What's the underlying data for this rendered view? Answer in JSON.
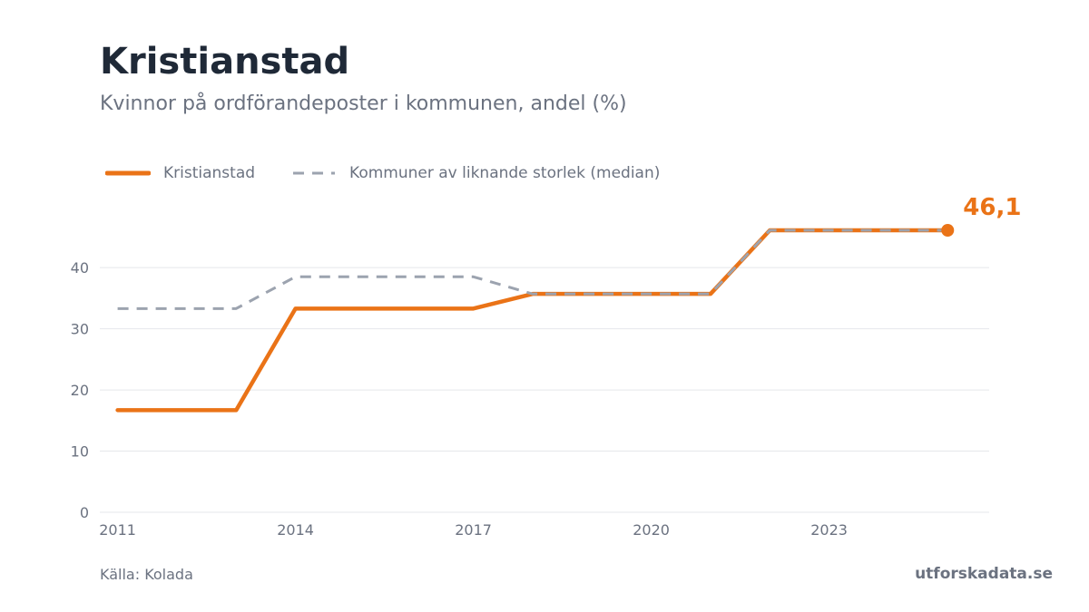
{
  "header": {
    "title": "Kristianstad",
    "subtitle": "Kvinnor på ordförandeposter i kommunen, andel (%)"
  },
  "footer": {
    "source": "Källa: Kolada",
    "brand": "utforskadata.se"
  },
  "colors": {
    "primary": "#ea7317",
    "median": "#9ca3af",
    "grid": "#e5e7eb",
    "text": "#6b7280",
    "title": "#1f2937"
  },
  "chart_data": {
    "type": "line",
    "title": "Kristianstad",
    "subtitle": "Kvinnor på ordförandeposter i kommunen, andel (%)",
    "xlabel": "",
    "ylabel": "",
    "x": [
      2011,
      2012,
      2013,
      2014,
      2015,
      2016,
      2017,
      2018,
      2019,
      2020,
      2021,
      2022,
      2023,
      2024,
      2025
    ],
    "xticks": [
      "2011",
      "2014",
      "2017",
      "2020",
      "2023"
    ],
    "yticks": [
      "0",
      "10",
      "20",
      "30",
      "40"
    ],
    "xlim": [
      2010.7,
      2025.7
    ],
    "ylim": [
      0,
      46.1
    ],
    "grid": true,
    "legend_position": "top-left",
    "series": [
      {
        "name": "Kristianstad",
        "style": "solid",
        "values": [
          16.7,
          16.7,
          16.7,
          33.3,
          33.3,
          33.3,
          33.3,
          35.7,
          35.7,
          35.7,
          35.7,
          46.1,
          46.1,
          46.1,
          46.1
        ]
      },
      {
        "name": "Kommuner av liknande storlek (median)",
        "style": "dashed",
        "values": [
          33.3,
          33.3,
          33.3,
          38.5,
          38.5,
          38.5,
          38.5,
          35.7,
          35.7,
          35.7,
          35.7,
          46.1,
          46.1,
          46.1,
          46.1
        ]
      }
    ],
    "end_label": "46,1"
  }
}
